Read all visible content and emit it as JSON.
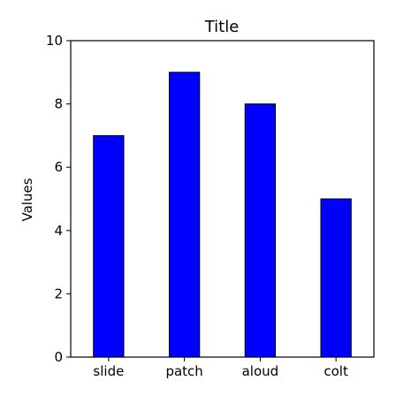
{
  "chart_data": {
    "type": "bar",
    "title": "Title",
    "xlabel": "",
    "ylabel": "Values",
    "categories": [
      "slide",
      "patch",
      "aloud",
      "colt"
    ],
    "values": [
      7,
      9,
      8,
      5
    ],
    "ylim": [
      0,
      10
    ],
    "yticks": [
      0,
      2,
      4,
      6,
      8,
      10
    ],
    "ytick_labels": [
      "0",
      "2",
      "4",
      "6",
      "8",
      "10"
    ],
    "grid": false,
    "legend": "none",
    "bar_color": "#0000ff",
    "edge_color": "#000000"
  }
}
